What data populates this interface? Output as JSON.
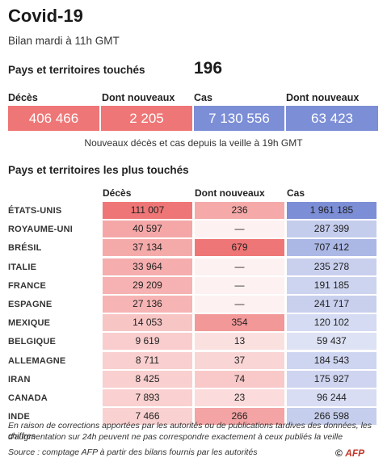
{
  "header": {
    "title": "Covid-19",
    "subtitle": "Bilan mardi à 11h GMT",
    "countries_label": "Pays et territoires touchés",
    "countries_value": "196"
  },
  "summary": {
    "columns": [
      "Décès",
      "Dont nouveaux",
      "Cas",
      "Dont nouveaux"
    ],
    "values": [
      "406 466",
      "2 205",
      "7 130 556",
      "63 423"
    ],
    "colors": [
      "#ef7676",
      "#ef7676",
      "#7c8ed6",
      "#7c8ed6"
    ],
    "note": "Nouveaux décès et cas depuis la veille à 19h GMT"
  },
  "table": {
    "heading": "Pays et territoires les plus touchés",
    "columns": [
      "Décès",
      "Dont nouveaux",
      "Cas"
    ]
  },
  "chart_data": {
    "type": "table",
    "title": "Pays et territoires les plus touchés",
    "columns": [
      "Décès",
      "Dont nouveaux",
      "Cas"
    ],
    "rows": [
      {
        "country": "ÉTATS-UNIS",
        "deces": 111007,
        "deces_label": "111 007",
        "nouveaux": 236,
        "nouveaux_label": "236",
        "cas": 1961185,
        "cas_label": "1 961 185"
      },
      {
        "country": "ROYAUME-UNI",
        "deces": 40597,
        "deces_label": "40 597",
        "nouveaux": null,
        "nouveaux_label": "—",
        "cas": 287399,
        "cas_label": "287 399"
      },
      {
        "country": "BRÉSIL",
        "deces": 37134,
        "deces_label": "37 134",
        "nouveaux": 679,
        "nouveaux_label": "679",
        "cas": 707412,
        "cas_label": "707 412"
      },
      {
        "country": "ITALIE",
        "deces": 33964,
        "deces_label": "33 964",
        "nouveaux": null,
        "nouveaux_label": "—",
        "cas": 235278,
        "cas_label": "235 278"
      },
      {
        "country": "FRANCE",
        "deces": 29209,
        "deces_label": "29 209",
        "nouveaux": null,
        "nouveaux_label": "—",
        "cas": 191185,
        "cas_label": "191 185"
      },
      {
        "country": "ESPAGNE",
        "deces": 27136,
        "deces_label": "27 136",
        "nouveaux": null,
        "nouveaux_label": "—",
        "cas": 241717,
        "cas_label": "241 717"
      },
      {
        "country": "MEXIQUE",
        "deces": 14053,
        "deces_label": "14 053",
        "nouveaux": 354,
        "nouveaux_label": "354",
        "cas": 120102,
        "cas_label": "120 102"
      },
      {
        "country": "BELGIQUE",
        "deces": 9619,
        "deces_label": "9 619",
        "nouveaux": 13,
        "nouveaux_label": "13",
        "cas": 59437,
        "cas_label": "59 437"
      },
      {
        "country": "ALLEMAGNE",
        "deces": 8711,
        "deces_label": "8 711",
        "nouveaux": 37,
        "nouveaux_label": "37",
        "cas": 184543,
        "cas_label": "184 543"
      },
      {
        "country": "IRAN",
        "deces": 8425,
        "deces_label": "8 425",
        "nouveaux": 74,
        "nouveaux_label": "74",
        "cas": 175927,
        "cas_label": "175 927"
      },
      {
        "country": "CANADA",
        "deces": 7893,
        "deces_label": "7 893",
        "nouveaux": 23,
        "nouveaux_label": "23",
        "cas": 96244,
        "cas_label": "96 244"
      },
      {
        "country": "INDE",
        "deces": 7466,
        "deces_label": "7 466",
        "nouveaux": 266,
        "nouveaux_label": "266",
        "cas": 266598,
        "cas_label": "266 598"
      }
    ],
    "colors": {
      "deaths": "#ef7676",
      "cases": "#7c8ed6"
    }
  },
  "footer": {
    "note_line1": "En raison de corrections apportées par les autorités ou de publications tardives des données, les chiffres",
    "note_line2": "d'augmentation sur 24h peuvent ne pas correspondre exactement à ceux publiés la veille",
    "source": "Source : comptage AFP à partir des bilans fournis par les autorités",
    "credit_prefix": "©",
    "credit_brand": "AFP"
  }
}
